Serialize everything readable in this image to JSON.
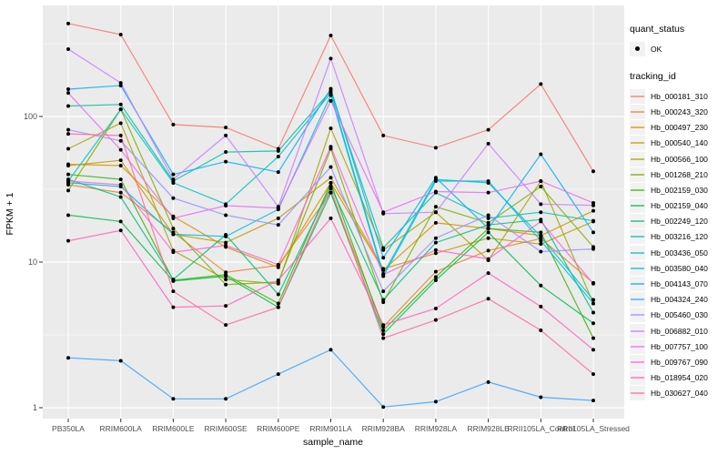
{
  "chart_data": {
    "type": "line",
    "title": "",
    "xlabel": "sample_name",
    "ylabel": "FPKM + 1",
    "yscale": "log10",
    "yticks": [
      1,
      10,
      100
    ],
    "ylim": [
      1,
      500
    ],
    "grid": "on",
    "panel_bg": "#EBEBEB",
    "grid_color": "#FFFFFF",
    "point_color": "#000000",
    "legend_position": "right",
    "categories": [
      "PB350LA",
      "RRIM600LA",
      "RRIM600LE",
      "RRIM600SE",
      "RRIM600PE",
      "RRIM901LA",
      "RRIM928BA",
      "RRIM928LA",
      "RRIM928LE",
      "RRII105LA_Control",
      "RRII105LA_Stressed"
    ],
    "series": [
      {
        "name": "Hb_000181_310",
        "color": "#F8766D",
        "values": [
          435,
          365,
          88,
          84,
          60,
          360,
          74,
          61,
          81,
          167,
          42
        ]
      },
      {
        "name": "Hb_000243_320",
        "color": "#EA8331",
        "values": [
          34,
          30,
          16,
          8.5,
          9.5,
          30,
          3.6,
          8.6,
          12,
          14.5,
          7.2
        ]
      },
      {
        "name": "Hb_000497_230",
        "color": "#D89000",
        "values": [
          47,
          46,
          20.6,
          12.7,
          9.2,
          35,
          8.8,
          18.6,
          17,
          15.2,
          22.5
        ]
      },
      {
        "name": "Hb_000540_140",
        "color": "#C09B00",
        "values": [
          46,
          50,
          15.5,
          13.6,
          20,
          38,
          9,
          11.5,
          14.6,
          13.3,
          19
        ]
      },
      {
        "name": "Hb_000566_100",
        "color": "#A3A500",
        "values": [
          60,
          90,
          12,
          7.6,
          7.1,
          83,
          12.1,
          22,
          10.3,
          36,
          5.2
        ]
      },
      {
        "name": "Hb_001268_210",
        "color": "#7CAE00",
        "values": [
          31,
          112,
          17,
          7,
          7.3,
          60,
          5.3,
          24,
          18.6,
          33,
          12.7
        ]
      },
      {
        "name": "Hb_002159_030",
        "color": "#39B600",
        "values": [
          40,
          37,
          7.5,
          8.2,
          5.2,
          35,
          3.4,
          7.9,
          17,
          16,
          3
        ]
      },
      {
        "name": "Hb_002159_040",
        "color": "#00BB4E",
        "values": [
          21,
          19,
          7.4,
          8,
          4.9,
          30,
          3.2,
          7.5,
          16,
          6.9,
          3.8
        ]
      },
      {
        "name": "Hb_002249_120",
        "color": "#00BF7D",
        "values": [
          37,
          28,
          7.6,
          15.4,
          6,
          33,
          5.5,
          13.6,
          18,
          19.6,
          4.5
        ]
      },
      {
        "name": "Hb_003216_120",
        "color": "#00C1A3",
        "values": [
          118,
          121,
          36,
          57,
          58,
          150,
          12.5,
          30,
          20,
          22,
          19.2
        ]
      },
      {
        "name": "Hb_003436_050",
        "color": "#00BFC4",
        "values": [
          36,
          112,
          35,
          25,
          53,
          145,
          8.3,
          37,
          35,
          15,
          5.5
        ]
      },
      {
        "name": "Hb_003580_040",
        "color": "#00BAE0",
        "values": [
          35,
          33,
          15.5,
          15,
          23,
          140,
          8,
          36,
          36,
          14,
          5.2
        ]
      },
      {
        "name": "Hb_004143_070",
        "color": "#00B0F6",
        "values": [
          154,
          163,
          40,
          49,
          41.5,
          155,
          10.7,
          38,
          17,
          55,
          16
        ]
      },
      {
        "name": "Hb_004324_240",
        "color": "#35A2FF",
        "values": [
          2.2,
          2.1,
          1.15,
          1.15,
          1.7,
          2.5,
          1.01,
          1.1,
          1.5,
          1.18,
          1.12
        ]
      },
      {
        "name": "Hb_005460_030",
        "color": "#9590FF",
        "values": [
          81,
          68,
          27.5,
          21,
          18,
          45,
          6.3,
          14.6,
          21,
          11.8,
          12.3
        ]
      },
      {
        "name": "Hb_006882_010",
        "color": "#C77CFF",
        "values": [
          290,
          170,
          37,
          74,
          24,
          250,
          21.5,
          22,
          65,
          25,
          24.5
        ]
      },
      {
        "name": "Hb_007757_100",
        "color": "#E76BF3",
        "values": [
          145,
          59,
          20,
          24.4,
          23.5,
          128,
          22,
          30.5,
          30,
          36,
          25.5
        ]
      },
      {
        "name": "Hb_009767_090",
        "color": "#FA62DB",
        "values": [
          36,
          34,
          11.7,
          13,
          9.6,
          62,
          8.2,
          12.1,
          10.5,
          19,
          7.1
        ]
      },
      {
        "name": "Hb_018954_020",
        "color": "#FF62BC",
        "values": [
          14,
          16.5,
          4.9,
          5,
          7.5,
          20,
          3.7,
          4.8,
          8.4,
          4.95,
          2.5
        ]
      },
      {
        "name": "Hb_030627_040",
        "color": "#FF6A98",
        "values": [
          76,
          74,
          6.3,
          3.7,
          4.9,
          32,
          3,
          4,
          5.6,
          3.4,
          1.7
        ]
      }
    ]
  },
  "legend": {
    "quant_status_title": "quant_status",
    "quant_status_items": [
      "OK"
    ],
    "tracking_title": "tracking_id"
  }
}
